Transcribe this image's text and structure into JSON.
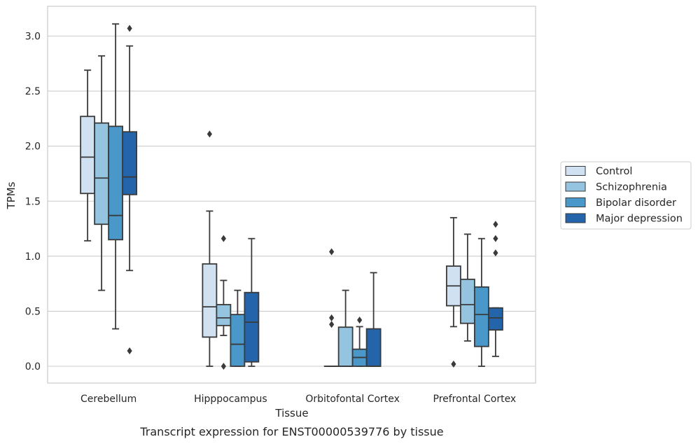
{
  "chart_data": {
    "type": "boxplot",
    "caption": "Transcript expression for ENST00000539776 by tissue",
    "xlabel": "Tissue",
    "ylabel": "TPMs",
    "ylim": [
      -0.15,
      3.25
    ],
    "yticks": [
      0.0,
      0.5,
      1.0,
      1.5,
      2.0,
      2.5,
      3.0
    ],
    "ytick_labels": [
      "0.0",
      "0.5",
      "1.0",
      "1.5",
      "2.0",
      "2.5",
      "3.0"
    ],
    "grid": "horizontal",
    "legend_position": "right",
    "categories": [
      "Cerebellum",
      "Hipppocampus",
      "Orbitofontal Cortex",
      "Prefrontal Cortex"
    ],
    "series": [
      {
        "name": "Control",
        "color": "#d0e1f2",
        "boxes": [
          {
            "whislo": 1.14,
            "q1": 1.57,
            "med": 1.9,
            "q3": 2.27,
            "whishi": 2.69,
            "fliers": []
          },
          {
            "whislo": 0.0,
            "q1": 0.265,
            "med": 0.54,
            "q3": 0.93,
            "whishi": 1.41,
            "fliers": [
              2.11
            ]
          },
          {
            "whislo": 0.0,
            "q1": 0.0,
            "med": 0.0,
            "q3": 0.0,
            "whishi": 0.0,
            "fliers": [
              1.04,
              0.44,
              0.38
            ]
          },
          {
            "whislo": 0.36,
            "q1": 0.55,
            "med": 0.73,
            "q3": 0.91,
            "whishi": 1.35,
            "fliers": [
              0.02
            ]
          }
        ]
      },
      {
        "name": "Schizophrenia",
        "color": "#94c4df",
        "boxes": [
          {
            "whislo": 0.69,
            "q1": 1.29,
            "med": 1.71,
            "q3": 2.21,
            "whishi": 2.82,
            "fliers": []
          },
          {
            "whislo": 0.28,
            "q1": 0.37,
            "med": 0.44,
            "q3": 0.56,
            "whishi": 0.78,
            "fliers": [
              1.16,
              0.0
            ]
          },
          {
            "whislo": 0.0,
            "q1": 0.0,
            "med": 0.0,
            "q3": 0.355,
            "whishi": 0.69,
            "fliers": []
          },
          {
            "whislo": 0.23,
            "q1": 0.39,
            "med": 0.56,
            "q3": 0.79,
            "whishi": 1.2,
            "fliers": []
          }
        ]
      },
      {
        "name": "Bipolar disorder",
        "color": "#4a98c9",
        "boxes": [
          {
            "whislo": 0.34,
            "q1": 1.15,
            "med": 1.37,
            "q3": 2.18,
            "whishi": 3.11,
            "fliers": []
          },
          {
            "whislo": 0.0,
            "q1": 0.0,
            "med": 0.2,
            "q3": 0.47,
            "whishi": 0.69,
            "fliers": []
          },
          {
            "whislo": 0.0,
            "q1": 0.0,
            "med": 0.08,
            "q3": 0.155,
            "whishi": 0.36,
            "fliers": [
              0.42
            ]
          },
          {
            "whislo": 0.0,
            "q1": 0.18,
            "med": 0.47,
            "q3": 0.72,
            "whishi": 1.16,
            "fliers": []
          }
        ]
      },
      {
        "name": "Major depression",
        "color": "#2464aa",
        "boxes": [
          {
            "whislo": 0.87,
            "q1": 1.56,
            "med": 1.72,
            "q3": 2.13,
            "whishi": 2.91,
            "fliers": [
              3.07,
              0.14
            ]
          },
          {
            "whislo": 0.0,
            "q1": 0.04,
            "med": 0.4,
            "q3": 0.67,
            "whishi": 1.16,
            "fliers": []
          },
          {
            "whislo": 0.0,
            "q1": 0.0,
            "med": 0.0,
            "q3": 0.34,
            "whishi": 0.85,
            "fliers": []
          },
          {
            "whislo": 0.09,
            "q1": 0.33,
            "med": 0.44,
            "q3": 0.53,
            "whishi": 0.53,
            "fliers": [
              1.29,
              1.16,
              1.03
            ]
          }
        ]
      }
    ]
  }
}
